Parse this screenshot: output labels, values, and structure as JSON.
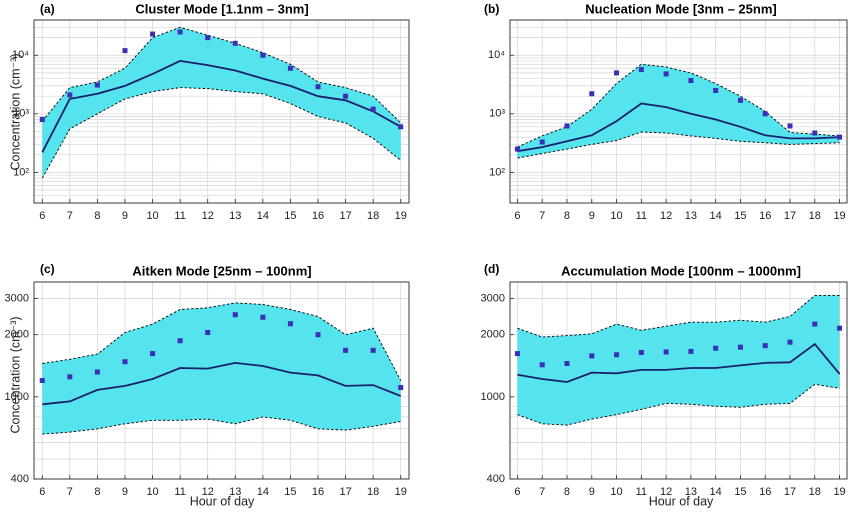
{
  "chart_data": [
    {
      "panel_label": "(a)",
      "type": "line",
      "title": "Cluster Mode [1.1nm – 3nm]",
      "yscale": "log",
      "ylabel": "Concentration (cm⁻³)",
      "xlabel": "",
      "x": [
        6,
        7,
        8,
        9,
        10,
        11,
        12,
        13,
        14,
        15,
        16,
        17,
        18,
        19
      ],
      "xlim": [
        5.7,
        19.3
      ],
      "ylim": [
        30,
        40000
      ],
      "yticks": [
        100,
        1000,
        10000
      ],
      "ytick_labels": [
        "10²",
        "10³",
        "10⁴"
      ],
      "series": [
        {
          "role": "median",
          "values": [
            220,
            1800,
            2200,
            3000,
            4800,
            8000,
            6800,
            5500,
            4000,
            3000,
            2000,
            1700,
            1100,
            600
          ]
        },
        {
          "role": "mean",
          "values": [
            800,
            2100,
            3100,
            12000,
            23000,
            25000,
            20000,
            16000,
            10000,
            6000,
            2900,
            2000,
            1200,
            600
          ]
        },
        {
          "role": "upper",
          "values": [
            750,
            2800,
            3500,
            6000,
            20000,
            30000,
            22000,
            16000,
            11000,
            7000,
            3500,
            2800,
            2000,
            700
          ]
        },
        {
          "role": "lower",
          "values": [
            80,
            550,
            1000,
            1800,
            2400,
            2800,
            2700,
            2400,
            2200,
            1500,
            900,
            700,
            380,
            160
          ]
        }
      ]
    },
    {
      "panel_label": "(b)",
      "type": "line",
      "title": "Nucleation Mode [3nm – 25nm]",
      "yscale": "log",
      "ylabel": "",
      "xlabel": "",
      "x": [
        6,
        7,
        8,
        9,
        10,
        11,
        12,
        13,
        14,
        15,
        16,
        17,
        18,
        19
      ],
      "xlim": [
        5.7,
        19.3
      ],
      "ylim": [
        30,
        40000
      ],
      "yticks": [
        100,
        1000,
        10000
      ],
      "ytick_labels": [
        "10²",
        "10³",
        "10⁴"
      ],
      "series": [
        {
          "role": "median",
          "values": [
            230,
            270,
            340,
            430,
            750,
            1500,
            1300,
            1000,
            800,
            600,
            430,
            380,
            380,
            400
          ]
        },
        {
          "role": "mean",
          "values": [
            250,
            330,
            620,
            2200,
            5000,
            5700,
            4800,
            3700,
            2500,
            1700,
            1000,
            620,
            470,
            400
          ]
        },
        {
          "role": "upper",
          "values": [
            270,
            420,
            600,
            1200,
            3300,
            7000,
            6300,
            5000,
            3300,
            2000,
            1100,
            480,
            450,
            420
          ]
        },
        {
          "role": "lower",
          "values": [
            175,
            210,
            250,
            300,
            350,
            490,
            470,
            420,
            380,
            340,
            320,
            300,
            310,
            320
          ]
        }
      ]
    },
    {
      "panel_label": "(c)",
      "type": "line",
      "title": "Aitken Mode [25nm – 100nm]",
      "yscale": "log",
      "ylabel": "Concentration (cm⁻³)",
      "xlabel": "Hour of day",
      "x": [
        6,
        7,
        8,
        9,
        10,
        11,
        12,
        13,
        14,
        15,
        16,
        17,
        18,
        19
      ],
      "xlim": [
        5.7,
        19.3
      ],
      "ylim": [
        400,
        3600
      ],
      "yticks": [
        400,
        1000,
        2000,
        3000
      ],
      "ytick_labels": [
        "400",
        "1000",
        "2000",
        "3000"
      ],
      "series": [
        {
          "role": "median",
          "values": [
            920,
            950,
            1080,
            1130,
            1220,
            1380,
            1370,
            1460,
            1410,
            1310,
            1270,
            1130,
            1140,
            1010
          ]
        },
        {
          "role": "mean",
          "values": [
            1200,
            1250,
            1320,
            1480,
            1620,
            1870,
            2050,
            2500,
            2430,
            2260,
            2000,
            1680,
            1680,
            1110
          ]
        },
        {
          "role": "upper",
          "values": [
            1450,
            1520,
            1610,
            2050,
            2250,
            2650,
            2700,
            2850,
            2800,
            2650,
            2450,
            2000,
            2150,
            1200
          ]
        },
        {
          "role": "lower",
          "values": [
            660,
            675,
            700,
            740,
            770,
            770,
            780,
            740,
            800,
            770,
            700,
            690,
            720,
            760
          ]
        }
      ]
    },
    {
      "panel_label": "(d)",
      "type": "line",
      "title": "Accumulation Mode [100nm – 1000nm]",
      "yscale": "log",
      "ylabel": "",
      "xlabel": "Hour of day",
      "x": [
        6,
        7,
        8,
        9,
        10,
        11,
        12,
        13,
        14,
        15,
        16,
        17,
        18,
        19
      ],
      "xlim": [
        5.7,
        19.3
      ],
      "ylim": [
        400,
        3600
      ],
      "yticks": [
        400,
        1000,
        2000,
        3000
      ],
      "ytick_labels": [
        "400",
        "1000",
        "2000",
        "3000"
      ],
      "series": [
        {
          "role": "median",
          "values": [
            1280,
            1220,
            1180,
            1310,
            1300,
            1350,
            1350,
            1380,
            1380,
            1420,
            1460,
            1470,
            1800,
            1290
          ]
        },
        {
          "role": "mean",
          "values": [
            1620,
            1430,
            1450,
            1580,
            1600,
            1640,
            1650,
            1660,
            1720,
            1740,
            1770,
            1840,
            2250,
            2150
          ]
        },
        {
          "role": "upper",
          "values": [
            2150,
            1950,
            1980,
            2020,
            2250,
            2100,
            2200,
            2300,
            2300,
            2350,
            2300,
            2450,
            3100,
            3100
          ]
        },
        {
          "role": "lower",
          "values": [
            820,
            740,
            730,
            780,
            820,
            870,
            930,
            920,
            900,
            890,
            920,
            930,
            1150,
            1100
          ]
        }
      ]
    }
  ],
  "colors": {
    "band_fill": "#55e3ed",
    "median_line": "#1a1f6e",
    "mean_marker": "#3a2fb5",
    "bound_line": "#000000",
    "grid": "#d4d4d4"
  }
}
